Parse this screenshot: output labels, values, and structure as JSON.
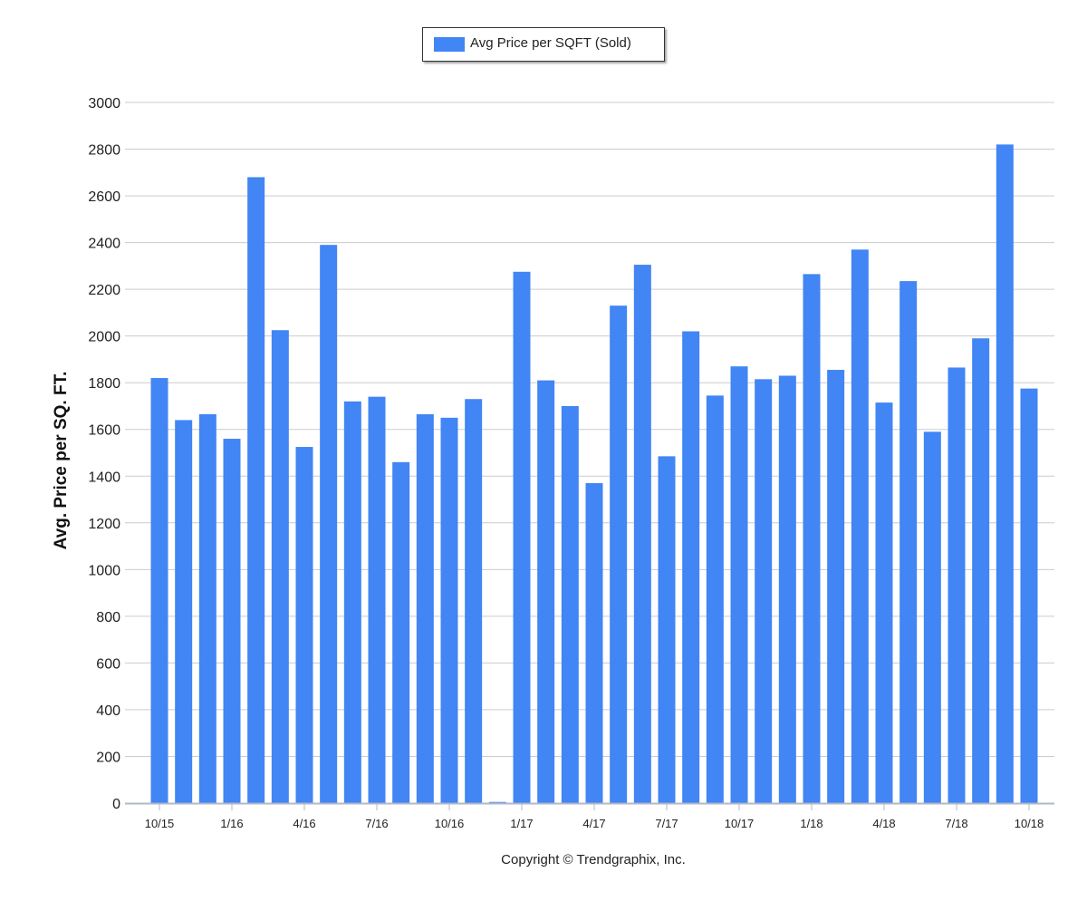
{
  "legend": {
    "label": "Avg Price per SQFT (Sold)"
  },
  "footer": {
    "text": "Copyright © Trendgraphix, Inc."
  },
  "colors": {
    "bar": "#4285f4",
    "grid": "#cccccc",
    "axis": "#b0b8c8"
  },
  "chart_data": {
    "type": "bar",
    "ylabel": "Avg. Price per SQ. FT.",
    "xlabel": "",
    "ylim": [
      0,
      3000
    ],
    "yticks": [
      0,
      200,
      400,
      600,
      800,
      1000,
      1200,
      1400,
      1600,
      1800,
      2000,
      2200,
      2400,
      2600,
      2800,
      3000
    ],
    "grid": true,
    "legend_position": "top-center",
    "categories": [
      "10/15",
      "11/15",
      "12/15",
      "1/16",
      "2/16",
      "3/16",
      "4/16",
      "5/16",
      "6/16",
      "7/16",
      "8/16",
      "9/16",
      "10/16",
      "11/16",
      "12/16",
      "1/17",
      "2/17",
      "3/17",
      "4/17",
      "5/17",
      "6/17",
      "7/17",
      "8/17",
      "9/17",
      "10/17",
      "11/17",
      "12/17",
      "1/18",
      "2/18",
      "3/18",
      "4/18",
      "5/18",
      "6/18",
      "7/18",
      "8/18",
      "9/18",
      "10/18"
    ],
    "tick_labels": [
      "10/15",
      "1/16",
      "4/16",
      "7/16",
      "10/16",
      "1/17",
      "4/17",
      "7/17",
      "10/17",
      "1/18",
      "4/18",
      "7/18",
      "10/18"
    ],
    "series": [
      {
        "name": "Avg Price per SQFT (Sold)",
        "values": [
          1820,
          1640,
          1665,
          1560,
          2680,
          2025,
          1525,
          2390,
          1720,
          1740,
          1460,
          1665,
          1650,
          1730,
          5,
          2275,
          1810,
          1700,
          1370,
          2130,
          2305,
          1485,
          2020,
          1745,
          1870,
          1815,
          1830,
          2265,
          1855,
          2370,
          1715,
          2235,
          1590,
          1865,
          1990,
          2820,
          1775
        ]
      }
    ]
  }
}
